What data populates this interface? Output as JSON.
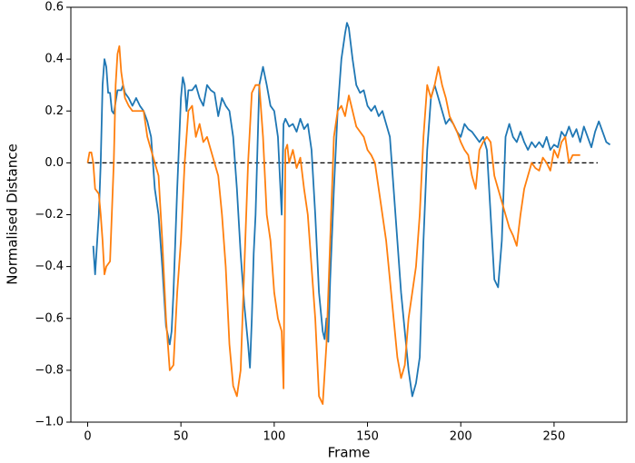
{
  "chart_data": {
    "type": "line",
    "xlabel": "Frame",
    "ylabel": "Normalised Distance",
    "xlim": [
      -9,
      289
    ],
    "ylim": [
      -1.0,
      0.6
    ],
    "xticks": [
      0,
      50,
      100,
      150,
      200,
      250
    ],
    "yticks": [
      {
        "value": -1.0,
        "label": "−1.0"
      },
      {
        "value": -0.8,
        "label": "−0.8"
      },
      {
        "value": -0.6,
        "label": "−0.6"
      },
      {
        "value": -0.4,
        "label": "−0.4"
      },
      {
        "value": -0.2,
        "label": "−0.2"
      },
      {
        "value": 0.0,
        "label": "0.0"
      },
      {
        "value": 0.2,
        "label": "0.2"
      },
      {
        "value": 0.4,
        "label": "0.4"
      },
      {
        "value": 0.6,
        "label": "0.6"
      }
    ],
    "hline": {
      "value": 0,
      "style": "dashed",
      "color": "#000000"
    },
    "series": [
      {
        "color": "#1f77b4",
        "x": [
          3,
          4,
          6,
          7,
          8,
          9,
          10,
          11,
          12,
          13,
          14,
          16,
          18,
          19,
          20,
          22,
          24,
          26,
          28,
          30,
          32,
          34,
          36,
          38,
          40,
          42,
          44,
          45,
          46,
          48,
          50,
          51,
          52,
          53,
          54,
          56,
          58,
          60,
          62,
          64,
          66,
          68,
          70,
          72,
          74,
          76,
          78,
          80,
          82,
          84,
          86,
          87,
          88,
          89,
          90,
          92,
          94,
          96,
          98,
          100,
          102,
          104,
          105,
          106,
          108,
          110,
          112,
          114,
          116,
          118,
          120,
          122,
          124,
          126,
          127,
          128,
          129,
          130,
          132,
          134,
          136,
          138,
          139,
          140,
          142,
          144,
          146,
          148,
          150,
          152,
          154,
          156,
          158,
          160,
          162,
          164,
          166,
          168,
          170,
          172,
          174,
          176,
          178,
          180,
          182,
          184,
          186,
          188,
          190,
          192,
          194,
          196,
          198,
          200,
          202,
          204,
          206,
          208,
          210,
          212,
          214,
          216,
          218,
          220,
          222,
          224,
          226,
          228,
          230,
          232,
          234,
          236,
          238,
          240,
          242,
          244,
          246,
          248,
          250,
          252,
          254,
          256,
          258,
          260,
          262,
          264,
          266,
          268,
          270,
          272,
          274,
          276,
          278,
          280
        ],
        "values": [
          -0.32,
          -0.43,
          -0.2,
          0.0,
          0.3,
          0.4,
          0.37,
          0.27,
          0.27,
          0.2,
          0.19,
          0.28,
          0.28,
          0.3,
          0.27,
          0.25,
          0.22,
          0.25,
          0.22,
          0.2,
          0.16,
          0.1,
          -0.1,
          -0.2,
          -0.4,
          -0.63,
          -0.7,
          -0.65,
          -0.5,
          -0.1,
          0.25,
          0.33,
          0.3,
          0.2,
          0.28,
          0.28,
          0.3,
          0.25,
          0.22,
          0.3,
          0.28,
          0.27,
          0.18,
          0.25,
          0.22,
          0.2,
          0.1,
          -0.1,
          -0.35,
          -0.55,
          -0.7,
          -0.79,
          -0.6,
          -0.35,
          -0.2,
          0.3,
          0.37,
          0.3,
          0.22,
          0.2,
          0.1,
          -0.2,
          0.15,
          0.17,
          0.14,
          0.15,
          0.12,
          0.17,
          0.13,
          0.15,
          0.05,
          -0.2,
          -0.5,
          -0.65,
          -0.68,
          -0.6,
          -0.69,
          -0.45,
          -0.1,
          0.2,
          0.4,
          0.5,
          0.54,
          0.52,
          0.4,
          0.3,
          0.27,
          0.28,
          0.22,
          0.2,
          0.22,
          0.18,
          0.2,
          0.15,
          0.1,
          -0.1,
          -0.3,
          -0.5,
          -0.65,
          -0.8,
          -0.9,
          -0.85,
          -0.75,
          -0.3,
          0.05,
          0.25,
          0.3,
          0.25,
          0.2,
          0.15,
          0.17,
          0.15,
          0.12,
          0.1,
          0.15,
          0.13,
          0.12,
          0.1,
          0.08,
          0.1,
          0.05,
          -0.2,
          -0.45,
          -0.48,
          -0.3,
          0.1,
          0.15,
          0.1,
          0.08,
          0.12,
          0.08,
          0.05,
          0.08,
          0.06,
          0.08,
          0.06,
          0.1,
          0.05,
          0.07,
          0.06,
          0.12,
          0.1,
          0.14,
          0.1,
          0.13,
          0.08,
          0.14,
          0.1,
          0.06,
          0.12,
          0.16,
          0.12,
          0.08,
          0.07
        ]
      },
      {
        "color": "#ff7f0e",
        "x": [
          0,
          1,
          2,
          3,
          4,
          6,
          7,
          8,
          9,
          10,
          12,
          14,
          15,
          16,
          17,
          18,
          20,
          22,
          24,
          26,
          28,
          30,
          32,
          34,
          36,
          38,
          40,
          42,
          44,
          46,
          48,
          50,
          52,
          54,
          56,
          58,
          60,
          62,
          64,
          66,
          68,
          70,
          72,
          74,
          76,
          78,
          80,
          82,
          84,
          86,
          88,
          90,
          92,
          94,
          96,
          98,
          100,
          102,
          104,
          105,
          106,
          107,
          108,
          110,
          112,
          114,
          116,
          118,
          120,
          122,
          124,
          126,
          128,
          130,
          132,
          134,
          136,
          138,
          140,
          142,
          144,
          146,
          148,
          150,
          152,
          154,
          156,
          158,
          160,
          162,
          164,
          166,
          168,
          170,
          172,
          174,
          176,
          178,
          180,
          182,
          184,
          186,
          188,
          190,
          192,
          194,
          196,
          198,
          200,
          202,
          204,
          206,
          208,
          210,
          212,
          214,
          216,
          218,
          220,
          222,
          224,
          226,
          228,
          230,
          232,
          234,
          236,
          238,
          240,
          242,
          244,
          246,
          248,
          250,
          252,
          254,
          256,
          258,
          260,
          262,
          264
        ],
        "values": [
          0.0,
          0.04,
          0.04,
          0.0,
          -0.1,
          -0.12,
          -0.2,
          -0.3,
          -0.43,
          -0.4,
          -0.38,
          0.0,
          0.3,
          0.42,
          0.45,
          0.35,
          0.25,
          0.22,
          0.2,
          0.2,
          0.2,
          0.2,
          0.1,
          0.05,
          0.0,
          -0.05,
          -0.3,
          -0.6,
          -0.8,
          -0.78,
          -0.5,
          -0.3,
          0.0,
          0.2,
          0.22,
          0.1,
          0.15,
          0.08,
          0.1,
          0.05,
          0.0,
          -0.05,
          -0.2,
          -0.4,
          -0.7,
          -0.86,
          -0.9,
          -0.8,
          -0.4,
          0.0,
          0.27,
          0.3,
          0.3,
          0.1,
          -0.2,
          -0.3,
          -0.5,
          -0.6,
          -0.65,
          -0.87,
          0.05,
          0.07,
          0.0,
          0.05,
          -0.02,
          0.02,
          -0.1,
          -0.2,
          -0.4,
          -0.6,
          -0.9,
          -0.93,
          -0.7,
          -0.3,
          0.1,
          0.2,
          0.22,
          0.18,
          0.26,
          0.2,
          0.14,
          0.12,
          0.1,
          0.05,
          0.03,
          0.0,
          -0.1,
          -0.2,
          -0.3,
          -0.45,
          -0.6,
          -0.75,
          -0.83,
          -0.78,
          -0.6,
          -0.5,
          -0.4,
          -0.2,
          0.1,
          0.3,
          0.25,
          0.3,
          0.37,
          0.3,
          0.25,
          0.18,
          0.15,
          0.12,
          0.08,
          0.05,
          0.03,
          -0.05,
          -0.1,
          0.05,
          0.08,
          0.1,
          0.08,
          -0.05,
          -0.1,
          -0.15,
          -0.2,
          -0.25,
          -0.28,
          -0.32,
          -0.2,
          -0.1,
          -0.05,
          0.0,
          -0.02,
          -0.03,
          0.02,
          0.0,
          -0.03,
          0.05,
          0.02,
          0.08,
          0.1,
          0.0,
          0.03,
          0.03,
          0.03
        ]
      }
    ]
  }
}
